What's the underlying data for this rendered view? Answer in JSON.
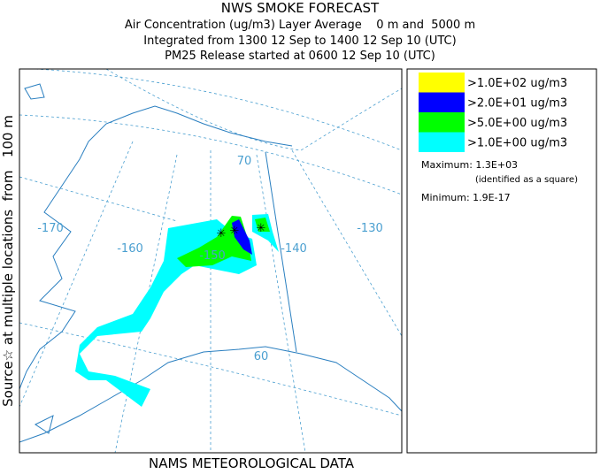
{
  "header": {
    "title": "NWS SMOKE FORECAST",
    "lines": [
      "Air Concentration (ug/m3) Layer Average    0 m and  5000 m",
      "Integrated from 1300 12 Sep to 1400 12 Sep 10 (UTC)",
      "PM25 Release started at 0600 12 Sep 10 (UTC)"
    ]
  },
  "side_label": "Source☆ at multiple locations  from   100 m",
  "footer": "NAMS METEOROLOGICAL DATA",
  "map": {
    "grid_labels": [
      "-170",
      "-160",
      "-150",
      "-140",
      "-130",
      "70",
      "60"
    ]
  },
  "legend": {
    "items": [
      {
        "label": ">1.0E+02 ug/m3",
        "color": "#ffff00"
      },
      {
        "label": ">2.0E+01 ug/m3",
        "color": "#0000ff"
      },
      {
        "label": ">5.0E+00 ug/m3",
        "color": "#00ff00"
      },
      {
        "label": ">1.0E+00 ug/m3",
        "color": "#00ffff"
      }
    ],
    "maximum": "Maximum: 1.3E+03",
    "maximum_note": "(identified as a square)",
    "minimum": "Minimum: 1.9E-17"
  }
}
